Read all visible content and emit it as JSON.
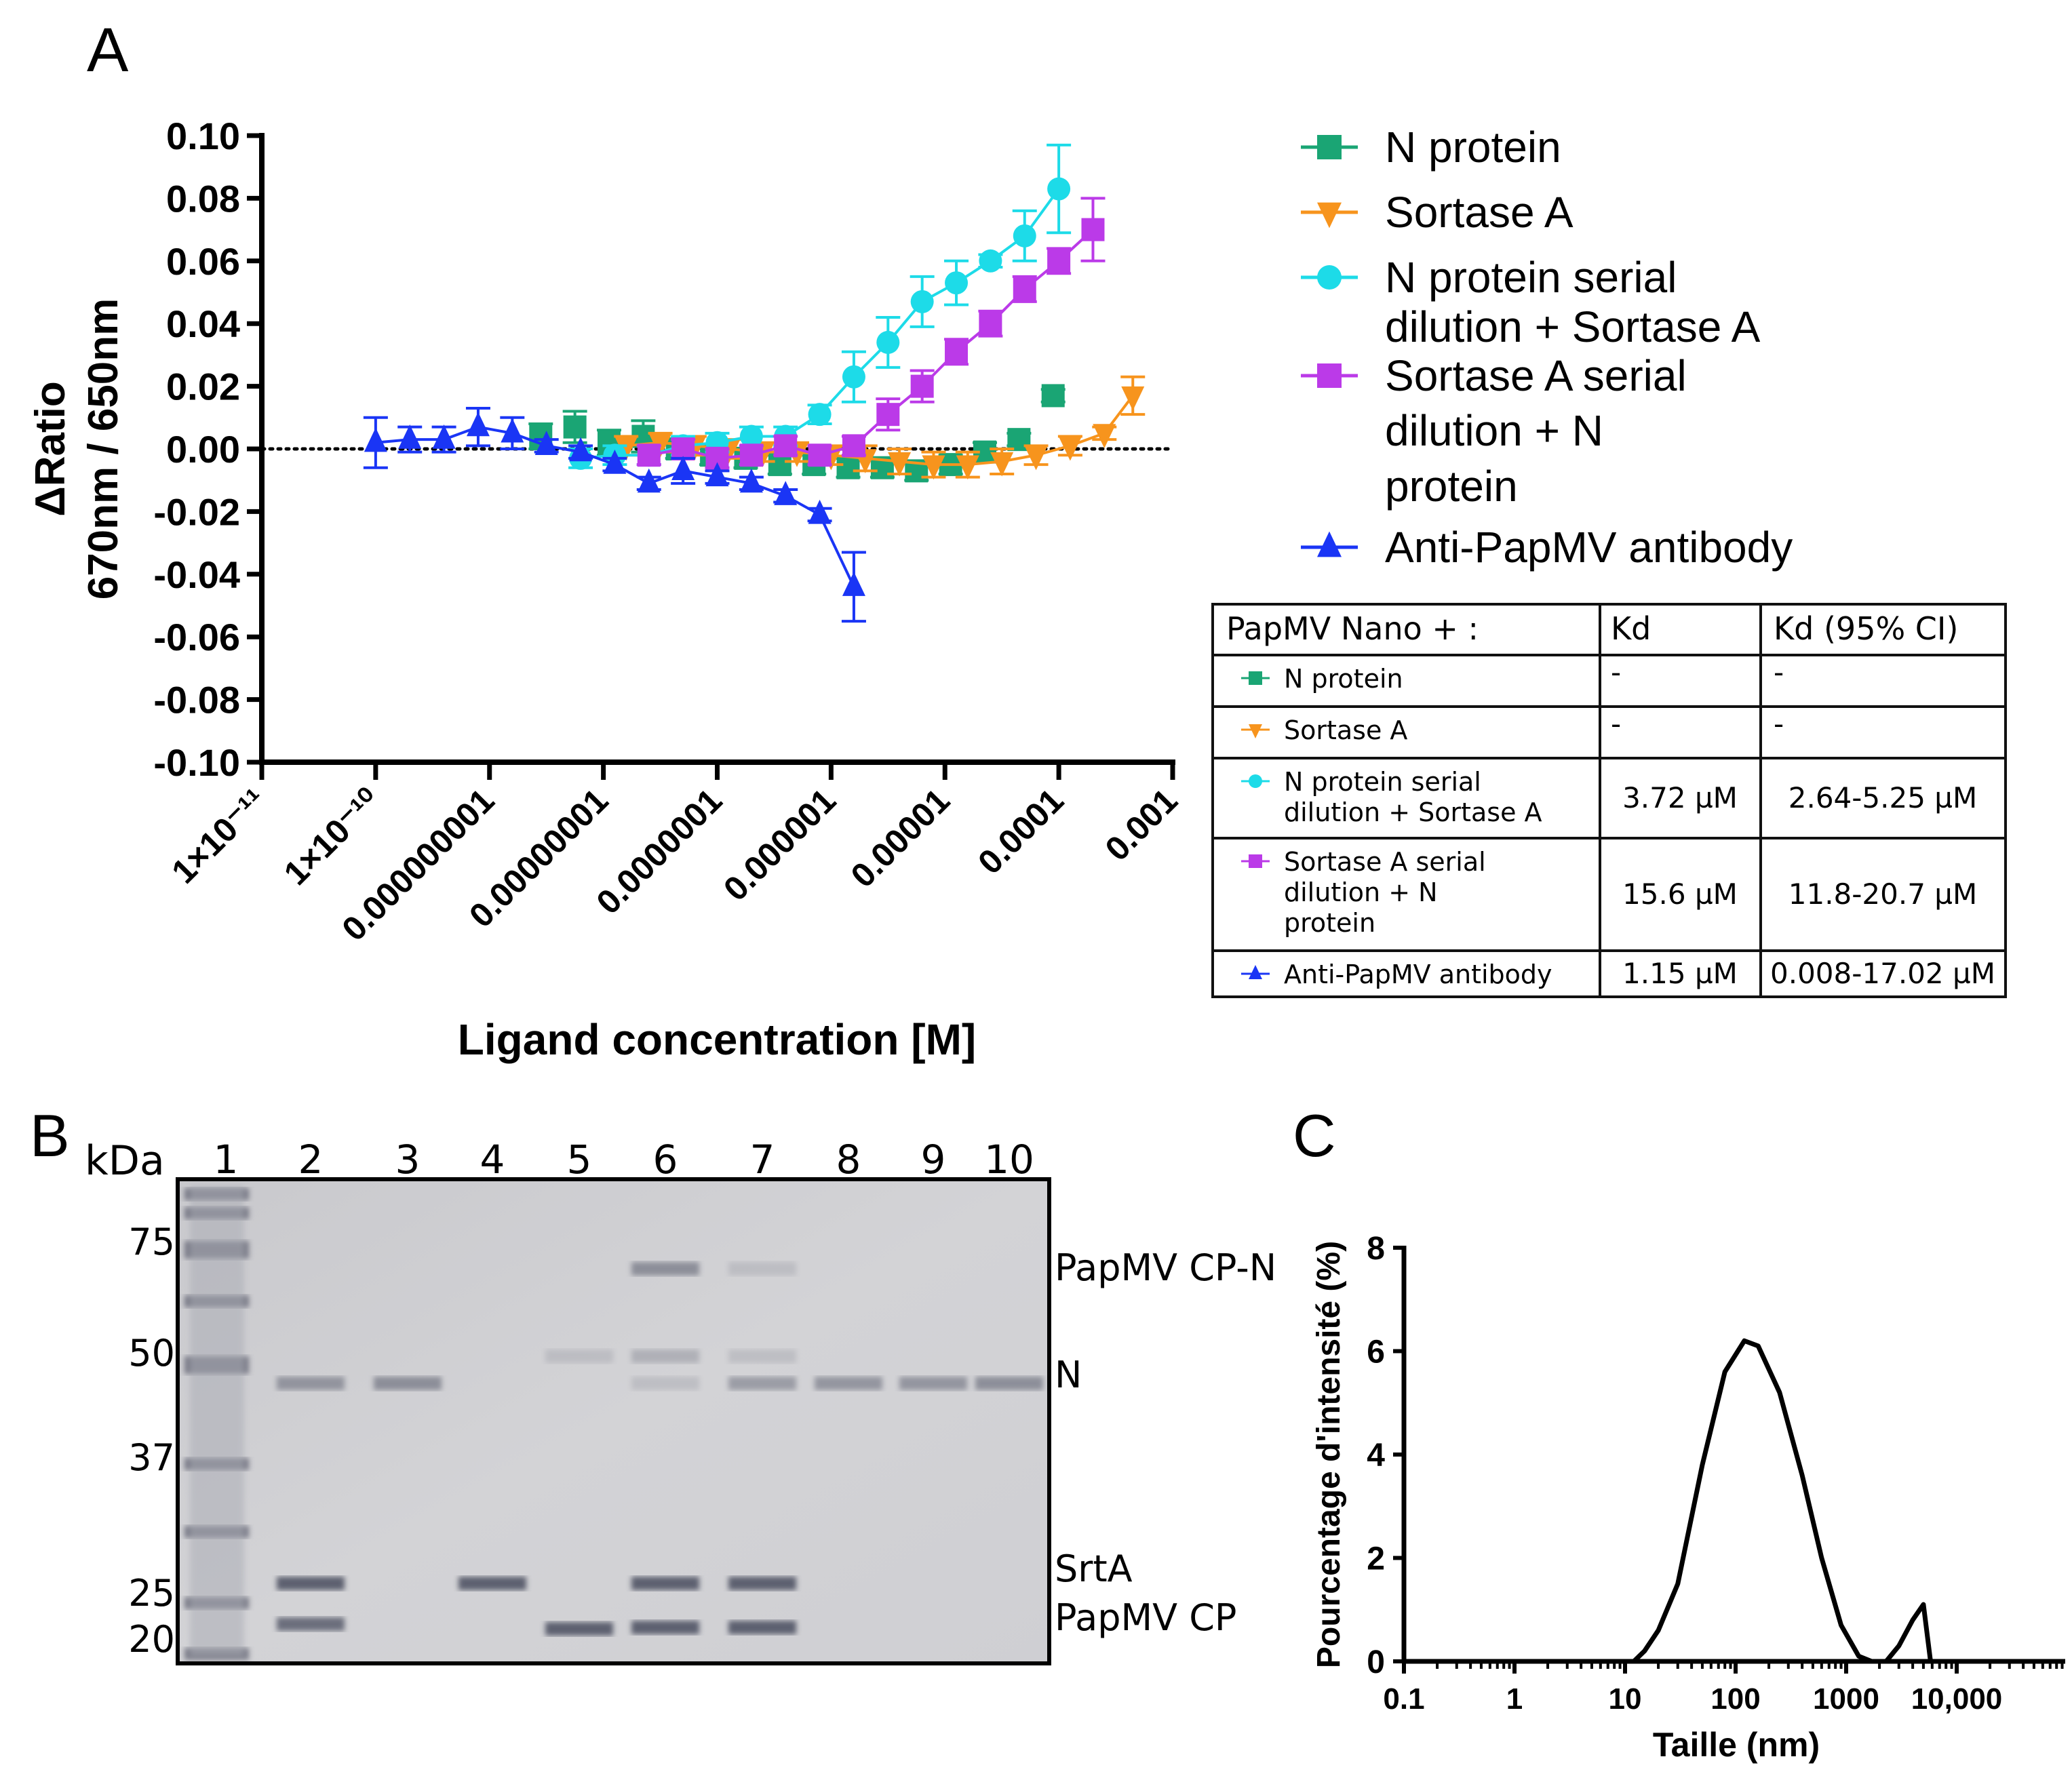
{
  "chart_data": [
    {
      "panel": "A",
      "type": "scatter",
      "xscale": "log10",
      "xlabel": "Ligand concentration [M]",
      "ylabel_line1": "ΔRatio",
      "ylabel_line2": "670nm / 650nm",
      "ylim": [
        -0.1,
        0.1
      ],
      "xlim_log10": [
        -11,
        -3
      ],
      "yticks": [
        "0.10",
        "0.08",
        "0.06",
        "0.04",
        "0.02",
        "0.00",
        "-0.02",
        "-0.04",
        "-0.06",
        "-0.08",
        "-0.10"
      ],
      "xtick_labels": [
        "1×10⁻¹¹",
        "1×10⁻¹⁰",
        "0.000000001",
        "0.00000001",
        "0.0000001",
        "0.000001",
        "0.00001",
        "0.0001",
        "0.001"
      ],
      "reference_line": 0,
      "legend_placement": "right",
      "series": [
        {
          "name": "N protein",
          "legend_lines": [
            "N protein"
          ],
          "color": "#1aa574",
          "marker": "square",
          "fit": false,
          "log10_x": [
            -8.55,
            -8.25,
            -7.95,
            -7.65,
            -7.35,
            -7.05,
            -6.75,
            -6.45,
            -6.15,
            -5.85,
            -5.55,
            -5.25,
            -4.95,
            -4.65,
            -4.35,
            -4.05
          ],
          "y": [
            0.004,
            0.007,
            0.002,
            0.004,
            0.0,
            -0.002,
            -0.003,
            -0.005,
            -0.005,
            -0.006,
            -0.006,
            -0.007,
            -0.005,
            -0.001,
            0.003,
            0.017
          ],
          "err": [
            0.004,
            0.005,
            0.004,
            0.005,
            0.003,
            0.003,
            0.003,
            0.003,
            0.003,
            0.003,
            0.003,
            0.003,
            0.003,
            0.003,
            0.002,
            0.002
          ]
        },
        {
          "name": "Sortase A",
          "legend_lines": [
            "Sortase A"
          ],
          "color": "#f7941d",
          "marker": "triangle-down",
          "fit": true,
          "log10_x": [
            -7.8,
            -7.5,
            -7.2,
            -6.9,
            -6.6,
            -6.3,
            -6.0,
            -5.7,
            -5.4,
            -5.1,
            -4.8,
            -4.5,
            -4.2,
            -3.9,
            -3.6,
            -3.35
          ],
          "y": [
            0.001,
            0.002,
            0.001,
            0.0,
            -0.001,
            -0.001,
            -0.002,
            -0.003,
            -0.004,
            -0.005,
            -0.005,
            -0.004,
            -0.002,
            0.001,
            0.005,
            0.017
          ],
          "err": [
            0.003,
            0.003,
            0.003,
            0.003,
            0.003,
            0.003,
            0.003,
            0.004,
            0.004,
            0.004,
            0.004,
            0.004,
            0.003,
            0.003,
            0.002,
            0.006
          ]
        },
        {
          "name": "N protein serial dilution + Sortase A",
          "legend_lines": [
            "N protein serial",
            "dilution + Sortase A"
          ],
          "color": "#1ddbe8",
          "marker": "circle",
          "fit": true,
          "log10_x": [
            -8.2,
            -7.9,
            -7.6,
            -7.3,
            -7.0,
            -6.7,
            -6.4,
            -6.1,
            -5.8,
            -5.5,
            -5.2,
            -4.9,
            -4.6,
            -4.3,
            -4.0
          ],
          "y": [
            -0.003,
            -0.002,
            -0.002,
            0.001,
            0.002,
            0.004,
            0.004,
            0.011,
            0.023,
            0.034,
            0.047,
            0.053,
            0.06,
            0.068,
            0.083
          ],
          "err": [
            0.003,
            0.003,
            0.003,
            0.003,
            0.003,
            0.003,
            0.003,
            0.003,
            0.008,
            0.008,
            0.008,
            0.007,
            0.002,
            0.008,
            0.014
          ]
        },
        {
          "name": "Sortase A serial dilution + N protein",
          "legend_lines": [
            "Sortase A serial",
            "dilution + N",
            "protein"
          ],
          "color": "#bb3ae8",
          "marker": "square",
          "fit": true,
          "log10_x": [
            -7.6,
            -7.3,
            -7.0,
            -6.7,
            -6.4,
            -6.1,
            -5.8,
            -5.5,
            -5.2,
            -4.9,
            -4.6,
            -4.3,
            -4.0,
            -3.7
          ],
          "y": [
            -0.002,
            0.0,
            -0.003,
            -0.002,
            0.001,
            -0.002,
            0.001,
            0.011,
            0.02,
            0.031,
            0.04,
            0.051,
            0.06,
            0.07
          ],
          "err": [
            0.003,
            0.003,
            0.003,
            0.003,
            0.003,
            0.003,
            0.003,
            0.005,
            0.005,
            0.004,
            0.004,
            0.004,
            0.004,
            0.01
          ]
        },
        {
          "name": "Anti-PapMV antibody",
          "legend_lines": [
            "Anti-PapMV antibody"
          ],
          "color": "#1a35f5",
          "marker": "triangle-up",
          "fit": true,
          "log10_x": [
            -10.0,
            -9.7,
            -9.4,
            -9.1,
            -8.8,
            -8.5,
            -8.2,
            -7.9,
            -7.6,
            -7.3,
            -7.0,
            -6.7,
            -6.4,
            -6.1,
            -5.8
          ],
          "y": [
            0.002,
            0.003,
            0.003,
            0.007,
            0.005,
            0.001,
            -0.001,
            -0.005,
            -0.011,
            -0.007,
            -0.009,
            -0.011,
            -0.015,
            -0.021,
            -0.044
          ],
          "err": [
            0.008,
            0.004,
            0.004,
            0.006,
            0.005,
            0.002,
            0.002,
            0.002,
            0.002,
            0.004,
            0.002,
            0.002,
            0.002,
            0.002,
            0.011
          ]
        }
      ],
      "table": {
        "headers": [
          "PapMV Nano + :",
          "Kd",
          "Kd (95% CI)"
        ],
        "rows": [
          {
            "label_lines": [
              "N protein"
            ],
            "kd": "-",
            "ci": "-"
          },
          {
            "label_lines": [
              "Sortase A"
            ],
            "kd": "-",
            "ci": "-"
          },
          {
            "label_lines": [
              "N protein serial",
              "dilution + Sortase A"
            ],
            "kd": "3.72 µM",
            "ci": "2.64-5.25 µM"
          },
          {
            "label_lines": [
              "Sortase A serial",
              "dilution + N",
              "protein"
            ],
            "kd": "15.6 µM",
            "ci": "11.8-20.7 µM"
          },
          {
            "label_lines": [
              "Anti-PapMV antibody"
            ],
            "kd": "1.15 µM",
            "ci": "0.008-17.02 µM"
          }
        ]
      }
    },
    {
      "panel": "C",
      "type": "line",
      "xscale": "log10",
      "xlabel": "Taille (nm)",
      "ylabel": "Pourcentage d'intensité (%)",
      "ylim": [
        0,
        8
      ],
      "yticks": [
        "0",
        "2",
        "4",
        "6",
        "8"
      ],
      "xticks": [
        0.1,
        1,
        10,
        100,
        1000,
        10000
      ],
      "xtick_labels": [
        "0.1",
        "1",
        "10",
        "100",
        "1000",
        "10,000"
      ],
      "x": [
        0.2,
        10,
        12,
        15,
        20,
        30,
        50,
        80,
        120,
        160,
        250,
        400,
        600,
        900,
        1300,
        1700,
        2300,
        3000,
        4000,
        5000,
        5800,
        80000
      ],
      "y": [
        0,
        0,
        0,
        0.2,
        0.6,
        1.5,
        3.8,
        5.6,
        6.2,
        6.1,
        5.2,
        3.6,
        2.0,
        0.7,
        0.1,
        0,
        0,
        0.3,
        0.8,
        1.1,
        0,
        0
      ]
    }
  ],
  "panel_labels": {
    "a": "A",
    "b": "B",
    "c": "C"
  },
  "gel": {
    "unit_label": "kDa",
    "lanes": [
      "1",
      "2",
      "3",
      "4",
      "5",
      "6",
      "7",
      "8",
      "9",
      "10"
    ],
    "markers": [
      "75",
      "50",
      "37",
      "25",
      "20"
    ],
    "band_labels": [
      "PapMV CP-N",
      "N",
      "SrtA",
      "PapMV CP"
    ]
  }
}
